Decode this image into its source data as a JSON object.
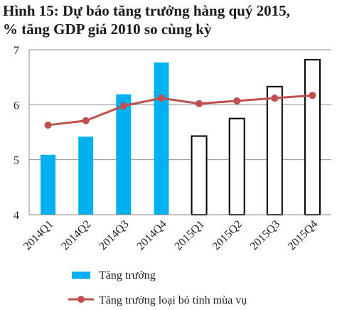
{
  "title_line1": "Hình 15: Dự báo tăng trưởng hàng quý 2015,",
  "title_line2": "% tăng GDP giá 2010 so cùng kỳ",
  "chart_data": {
    "type": "bar",
    "categories": [
      "2014Q1",
      "2014Q2",
      "2014Q3",
      "2014Q4",
      "2015Q1",
      "2015Q2",
      "2015Q3",
      "2015Q4"
    ],
    "ylim": [
      4,
      7
    ],
    "yticks": [
      4,
      5,
      6,
      7
    ],
    "grid": true,
    "legend_position": "bottom",
    "series": [
      {
        "name": "Tăng trưởng",
        "type": "bar",
        "color": "#00b0f0",
        "forecast_style": "white fill, black outline",
        "forecast_from_index": 4,
        "values": [
          5.09,
          5.42,
          6.19,
          6.77,
          5.43,
          5.75,
          6.33,
          6.82
        ]
      },
      {
        "name": "Tăng trưởng loại bỏ tính mùa vụ",
        "type": "line",
        "color": "#c0504d",
        "marker": "circle",
        "values": [
          5.63,
          5.71,
          5.98,
          6.12,
          6.02,
          6.07,
          6.12,
          6.17
        ]
      }
    ]
  }
}
